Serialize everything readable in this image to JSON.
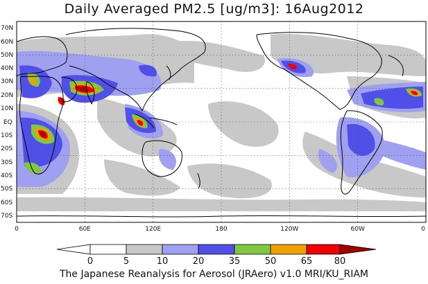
{
  "title": "Daily Averaged PM2.5 [ug/m3]: 16Aug2012",
  "footer": "The Japanese Reanalysis for Aerosol (JRAero) v1.0 MRI/KU_RIAM",
  "map": {
    "lon_range": [
      0,
      360
    ],
    "lat_range": [
      -75,
      75
    ],
    "lat_ticks": [
      "70N",
      "60N",
      "50N",
      "40N",
      "30N",
      "20N",
      "10N",
      "EQ",
      "10S",
      "20S",
      "30S",
      "40S",
      "50S",
      "60S",
      "70S"
    ],
    "lon_ticks": [
      "0",
      "60E",
      "120E",
      "180",
      "120W",
      "60W",
      "0"
    ],
    "grid": "dotted"
  },
  "colorbar": {
    "levels": [
      "0",
      "5",
      "10",
      "20",
      "35",
      "50",
      "65",
      "80"
    ],
    "colors": [
      "#ffffff",
      "#c8c8c8",
      "#a0a0f0",
      "#5050e8",
      "#80c840",
      "#f0a000",
      "#f00000",
      "#a00000"
    ]
  }
}
